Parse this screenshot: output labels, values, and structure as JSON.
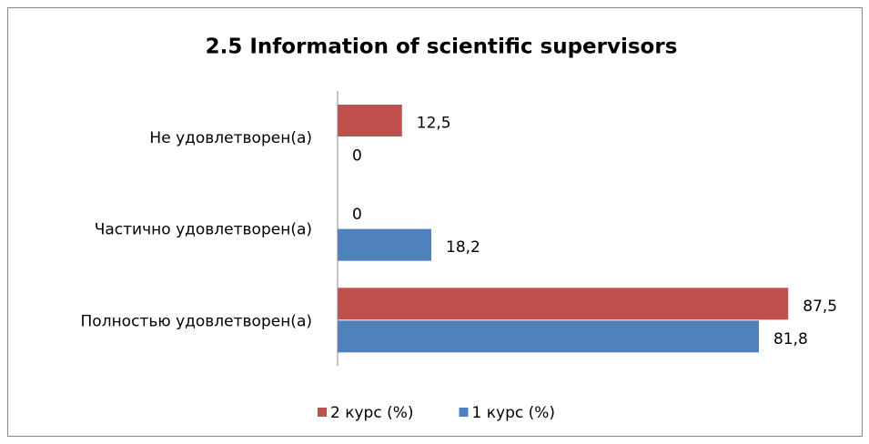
{
  "chart_data": {
    "type": "hbar",
    "title": "2.5 Information of scientific supervisors",
    "categories": [
      "Не удовлетворен(а)",
      "Частично удовлетворен(а)",
      "Полностью удовлетворен(а)"
    ],
    "series": [
      {
        "name": "2 курс (%)",
        "color": "#c0504d",
        "values": [
          12.5,
          0,
          87.5
        ],
        "value_labels": [
          "12,5",
          "0",
          "87,5"
        ]
      },
      {
        "name": "1 курс (%)",
        "color": "#4f81bd",
        "values": [
          0,
          18.2,
          81.8
        ],
        "value_labels": [
          "0",
          "18,2",
          "81,8"
        ]
      }
    ],
    "xlim": [
      0,
      100
    ],
    "legend": "bottom"
  }
}
